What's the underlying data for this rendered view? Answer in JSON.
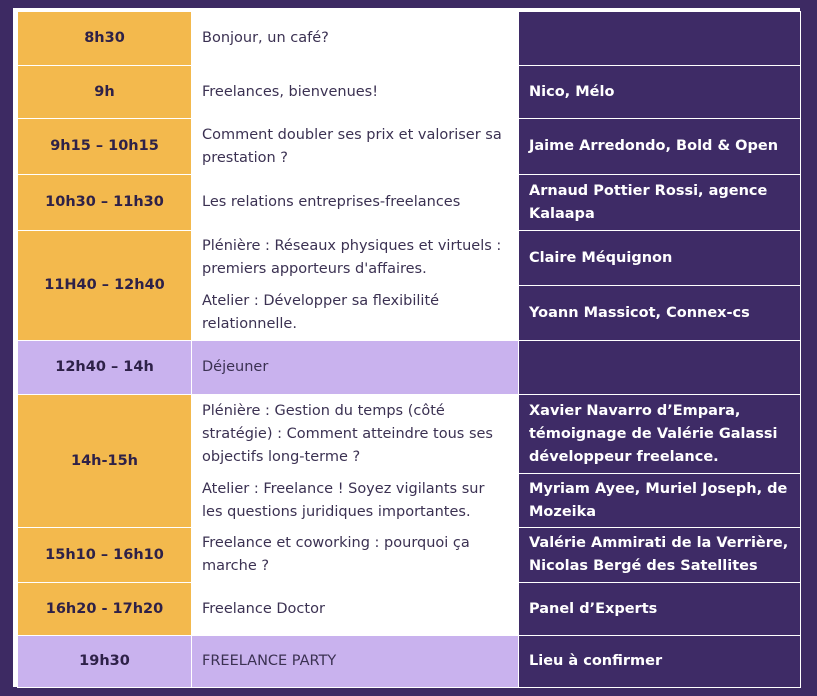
{
  "schedule": {
    "rows": [
      {
        "time": "8h30",
        "topic": "Bonjour, un café?",
        "speaker": ""
      },
      {
        "time": "9h",
        "topic": "Freelances, bienvenues!",
        "speaker": "Nico, Mélo"
      },
      {
        "time": "9h15 – 10h15",
        "topic": "Comment doubler ses prix et valoriser sa prestation ?",
        "speaker": "Jaime Arredondo, Bold & Open"
      },
      {
        "time": "10h30 – 11h30",
        "topic": "Les relations entreprises-freelances",
        "speaker": "Arnaud Pottier Rossi, agence Kalaapa"
      },
      {
        "time": "11H40 – 12h40",
        "topic": "Plénière : Réseaux physiques et virtuels : premiers apporteurs d'affaires.",
        "speaker": "Claire Méquignon"
      },
      {
        "topic": "Atelier : Développer sa flexibilité relationnelle.",
        "speaker": "Yoann Massicot, Connex-cs"
      },
      {
        "time": "12h40 – 14h",
        "topic": "Déjeuner",
        "speaker": ""
      },
      {
        "time": "14h-15h",
        "topic": "Plénière : Gestion du temps (côté stratégie) : Comment atteindre tous ses objectifs long-terme ?",
        "speaker": "Xavier Navarro d’Empara, témoignage de Valérie Galassi développeur freelance."
      },
      {
        "topic": "Atelier : Freelance ! Soyez vigilants sur les questions juridiques importantes.",
        "speaker": "Myriam Ayee, Muriel Joseph, de Mozeika"
      },
      {
        "time": "15h10 – 16h10",
        "topic": "Freelance et coworking : pourquoi ça marche ?",
        "speaker": "Valérie Ammirati de la Verrière, Nicolas Bergé des Satellites"
      },
      {
        "time": "16h20 - 17h20",
        "topic": "Freelance Doctor",
        "speaker": "Panel d’Experts"
      },
      {
        "time": "19h30",
        "topic": "FREELANCE PARTY",
        "speaker": "Lieu à confirmer"
      }
    ]
  },
  "colors": {
    "background": "#3d2a63",
    "time_orange": "#f3b94d",
    "lavender": "#c9b2ee",
    "speaker_purple": "#3e2b66"
  }
}
